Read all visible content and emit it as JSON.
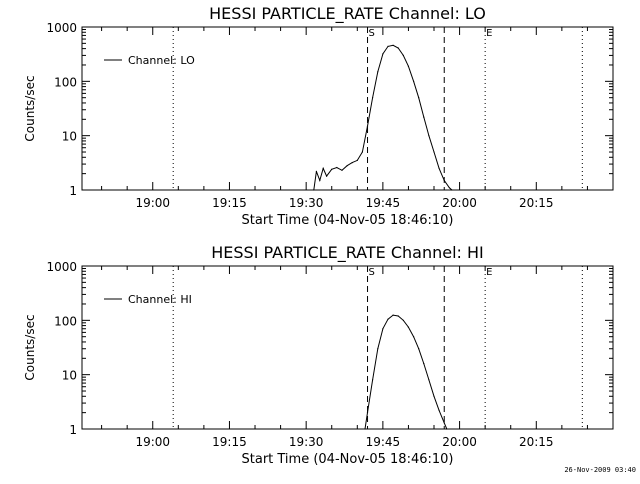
{
  "footer_date": "26-Nov-2009 03:40",
  "chart_data": [
    {
      "type": "line",
      "title": "HESSI PARTICLE_RATE Channel: LO",
      "xlabel": "Start Time (04-Nov-05 18:46:10)",
      "ylabel": "Counts/sec",
      "yscale": "log",
      "ylim": [
        1,
        1000
      ],
      "xlim": [
        "18:46:10",
        "20:30:00"
      ],
      "x_ticks": [
        "19:00",
        "19:15",
        "19:30",
        "19:45",
        "20:00",
        "20:15"
      ],
      "y_ticks": [
        "1",
        "10",
        "100",
        "1000"
      ],
      "legend": {
        "position": "top-left",
        "entries": [
          "Channel: LO"
        ]
      },
      "vlines": [
        {
          "x": "19:04",
          "style": "dotted",
          "label": ""
        },
        {
          "x": "19:42",
          "style": "dashed",
          "label": "S"
        },
        {
          "x": "19:57",
          "style": "dashed",
          "label": ""
        },
        {
          "x": "20:05",
          "style": "dotted",
          "label": "E"
        },
        {
          "x": "20:24",
          "style": "dotted",
          "label": ""
        }
      ],
      "series": [
        {
          "name": "Channel: LO",
          "x": [
            "19:31:30",
            "19:32:00",
            "19:32:40",
            "19:33:20",
            "19:34:00",
            "19:35:00",
            "19:36:00",
            "19:37:00",
            "19:38:00",
            "19:39:00",
            "19:40:00",
            "19:41:00",
            "19:42:00",
            "19:43:00",
            "19:44:00",
            "19:45:00",
            "19:46:00",
            "19:47:00",
            "19:48:00",
            "19:49:00",
            "19:50:00",
            "19:51:00",
            "19:52:00",
            "19:53:00",
            "19:54:00",
            "19:55:00",
            "19:56:00",
            "19:57:00",
            "19:58:00",
            "19:58:30"
          ],
          "y": [
            1,
            2.2,
            1.5,
            2.5,
            1.8,
            2.4,
            2.6,
            2.3,
            2.8,
            3.2,
            3.5,
            5,
            15,
            50,
            150,
            320,
            440,
            460,
            410,
            300,
            190,
            100,
            50,
            22,
            10,
            5,
            2.5,
            1.5,
            1.1,
            1
          ]
        }
      ]
    },
    {
      "type": "line",
      "title": "HESSI PARTICLE_RATE Channel: HI",
      "xlabel": "Start Time (04-Nov-05 18:46:10)",
      "ylabel": "Counts/sec",
      "yscale": "log",
      "ylim": [
        1,
        1000
      ],
      "xlim": [
        "18:46:10",
        "20:30:00"
      ],
      "x_ticks": [
        "19:00",
        "19:15",
        "19:30",
        "19:45",
        "20:00",
        "20:15"
      ],
      "y_ticks": [
        "1",
        "10",
        "100",
        "1000"
      ],
      "legend": {
        "position": "top-left",
        "entries": [
          "Channel: HI"
        ]
      },
      "vlines": [
        {
          "x": "19:04",
          "style": "dotted",
          "label": ""
        },
        {
          "x": "19:42",
          "style": "dashed",
          "label": "S"
        },
        {
          "x": "19:57",
          "style": "dashed",
          "label": ""
        },
        {
          "x": "20:05",
          "style": "dotted",
          "label": "E"
        },
        {
          "x": "20:24",
          "style": "dotted",
          "label": ""
        }
      ],
      "series": [
        {
          "name": "Channel: HI",
          "x": [
            "19:41:30",
            "19:42:00",
            "19:43:00",
            "19:44:00",
            "19:45:00",
            "19:46:00",
            "19:47:00",
            "19:48:00",
            "19:49:00",
            "19:50:00",
            "19:51:00",
            "19:52:00",
            "19:53:00",
            "19:54:00",
            "19:55:00",
            "19:56:00",
            "19:57:00",
            "19:57:30"
          ],
          "y": [
            1,
            2,
            8,
            30,
            70,
            105,
            125,
            120,
            100,
            75,
            50,
            30,
            16,
            8,
            4,
            2.2,
            1.3,
            1
          ]
        }
      ]
    }
  ]
}
